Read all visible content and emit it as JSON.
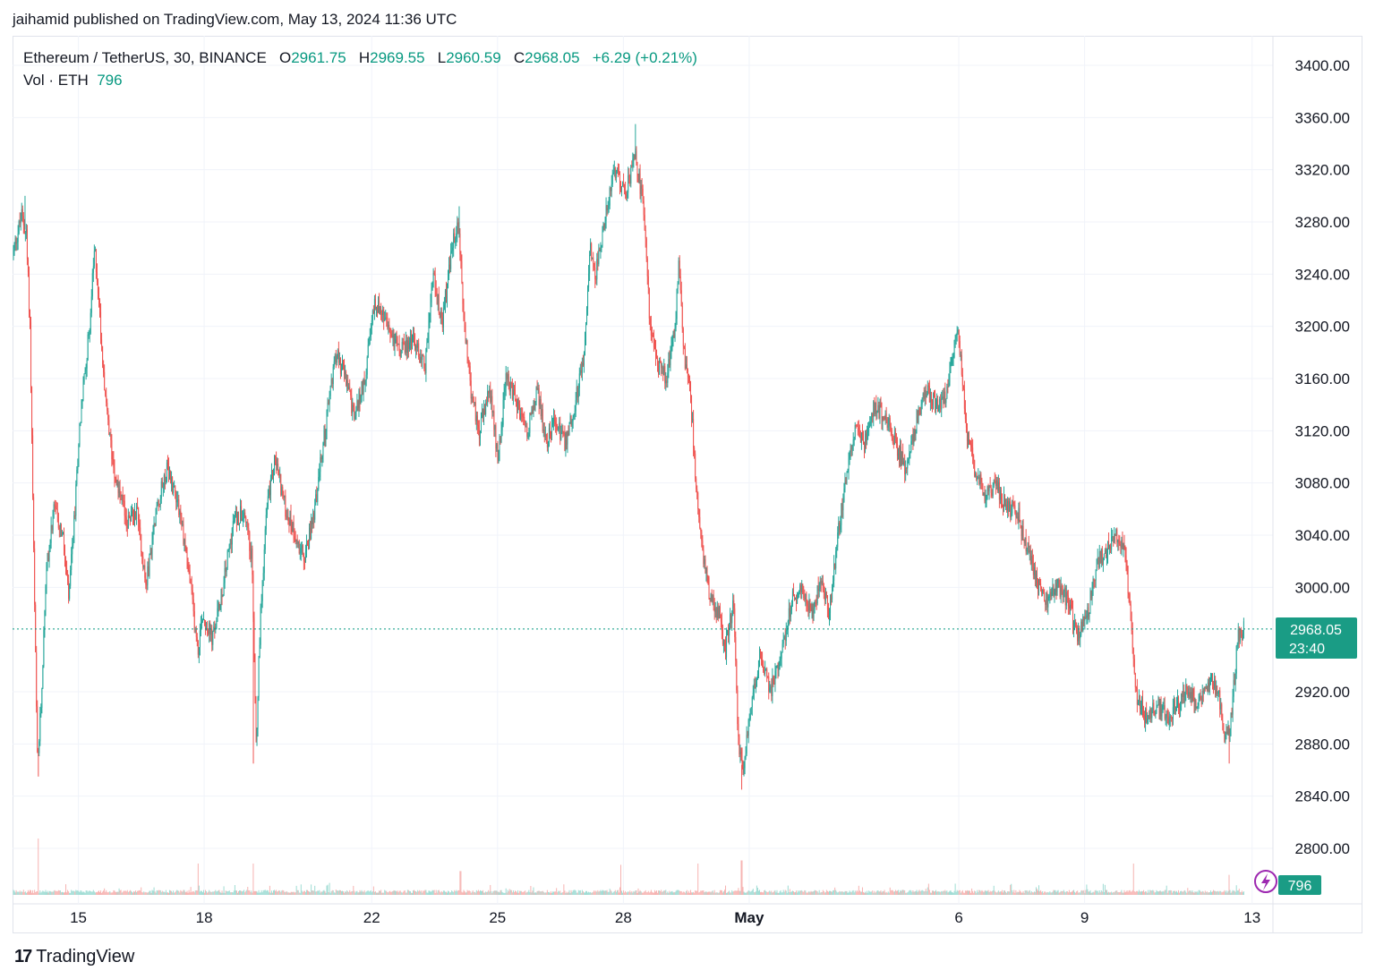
{
  "header": {
    "publisher_text": "jaihamid published on TradingView.com, May 13, 2024 11:36 UTC"
  },
  "legend": {
    "symbol": "Ethereum / TetherUS, 30, BINANCE",
    "o_label": "O",
    "o_value": "2961.75",
    "h_label": "H",
    "h_value": "2969.55",
    "l_label": "L",
    "l_value": "2960.59",
    "c_label": "C",
    "c_value": "2968.05",
    "change": "+6.29 (+0.21%)",
    "vol_label": "Vol · ETH",
    "vol_value": "796"
  },
  "last_price": {
    "price": "2968.05",
    "countdown": "23:40"
  },
  "volume_badge": "796",
  "branding": {
    "logo_text": "TradingView",
    "logo_mark": "17"
  },
  "colors": {
    "up": "#26a69a",
    "down": "#ef5350",
    "up_vol": "#9fdcd4",
    "down_vol": "#f6b3b1",
    "price_line": "#089981",
    "grid": "#f0f3fa",
    "axis_text": "#131722",
    "badge_bg": "#1a9c85"
  },
  "chart_data": {
    "type": "candlestick",
    "title": "Ethereum / TetherUS, 30, BINANCE",
    "ylim": [
      2780,
      3420
    ],
    "y_ticks": [
      "3400.00",
      "3360.00",
      "3320.00",
      "3280.00",
      "3240.00",
      "3200.00",
      "3160.00",
      "3120.00",
      "3080.00",
      "3040.00",
      "3000.00",
      "2920.00",
      "2880.00",
      "2840.00",
      "2800.00"
    ],
    "x_ticks": [
      {
        "label": "15",
        "pos": 1.58
      },
      {
        "label": "18",
        "pos": 4.6
      },
      {
        "label": "22",
        "pos": 8.62
      },
      {
        "label": "25",
        "pos": 11.64
      },
      {
        "label": "28",
        "pos": 14.66
      },
      {
        "label": "May",
        "pos": 17.68,
        "bold": true
      },
      {
        "label": "6",
        "pos": 22.71
      },
      {
        "label": "9",
        "pos": 25.73
      },
      {
        "label": "13",
        "pos": 29.75
      }
    ],
    "x_range": [
      0,
      30.25
    ],
    "close_path": [
      [
        0.0,
        3255
      ],
      [
        0.22,
        3285
      ],
      [
        0.33,
        3270
      ],
      [
        0.42,
        3200
      ],
      [
        0.52,
        3000
      ],
      [
        0.6,
        2860
      ],
      [
        0.7,
        2920
      ],
      [
        0.8,
        3010
      ],
      [
        1.0,
        3060
      ],
      [
        1.2,
        3040
      ],
      [
        1.35,
        2990
      ],
      [
        1.5,
        3060
      ],
      [
        1.6,
        3120
      ],
      [
        1.72,
        3160
      ],
      [
        1.85,
        3200
      ],
      [
        1.97,
        3260
      ],
      [
        2.05,
        3230
      ],
      [
        2.15,
        3180
      ],
      [
        2.3,
        3120
      ],
      [
        2.5,
        3080
      ],
      [
        2.75,
        3050
      ],
      [
        3.0,
        3060
      ],
      [
        3.2,
        3000
      ],
      [
        3.45,
        3060
      ],
      [
        3.7,
        3090
      ],
      [
        3.95,
        3070
      ],
      [
        4.2,
        3020
      ],
      [
        4.45,
        2950
      ],
      [
        4.55,
        2980
      ],
      [
        4.8,
        2960
      ],
      [
        5.05,
        3000
      ],
      [
        5.3,
        3050
      ],
      [
        5.55,
        3060
      ],
      [
        5.75,
        3020
      ],
      [
        5.85,
        2880
      ],
      [
        5.95,
        2980
      ],
      [
        6.1,
        3060
      ],
      [
        6.3,
        3100
      ],
      [
        6.55,
        3060
      ],
      [
        6.8,
        3040
      ],
      [
        7.0,
        3020
      ],
      [
        7.25,
        3060
      ],
      [
        7.5,
        3120
      ],
      [
        7.75,
        3180
      ],
      [
        8.0,
        3160
      ],
      [
        8.2,
        3130
      ],
      [
        8.45,
        3160
      ],
      [
        8.7,
        3220
      ],
      [
        9.0,
        3200
      ],
      [
        9.3,
        3180
      ],
      [
        9.6,
        3190
      ],
      [
        9.9,
        3170
      ],
      [
        10.1,
        3240
      ],
      [
        10.3,
        3200
      ],
      [
        10.55,
        3260
      ],
      [
        10.7,
        3280
      ],
      [
        10.8,
        3220
      ],
      [
        11.0,
        3150
      ],
      [
        11.2,
        3120
      ],
      [
        11.45,
        3150
      ],
      [
        11.65,
        3100
      ],
      [
        11.85,
        3160
      ],
      [
        12.1,
        3140
      ],
      [
        12.35,
        3120
      ],
      [
        12.6,
        3150
      ],
      [
        12.8,
        3110
      ],
      [
        13.0,
        3130
      ],
      [
        13.25,
        3110
      ],
      [
        13.5,
        3140
      ],
      [
        13.72,
        3180
      ],
      [
        13.85,
        3260
      ],
      [
        14.0,
        3240
      ],
      [
        14.2,
        3280
      ],
      [
        14.45,
        3320
      ],
      [
        14.7,
        3300
      ],
      [
        14.95,
        3330
      ],
      [
        15.15,
        3290
      ],
      [
        15.3,
        3200
      ],
      [
        15.5,
        3170
      ],
      [
        15.7,
        3160
      ],
      [
        15.9,
        3200
      ],
      [
        16.0,
        3250
      ],
      [
        16.1,
        3180
      ],
      [
        16.25,
        3160
      ],
      [
        16.4,
        3080
      ],
      [
        16.55,
        3030
      ],
      [
        16.75,
        2990
      ],
      [
        16.95,
        2980
      ],
      [
        17.1,
        2950
      ],
      [
        17.3,
        2990
      ],
      [
        17.42,
        2880
      ],
      [
        17.52,
        2860
      ],
      [
        17.7,
        2900
      ],
      [
        17.95,
        2950
      ],
      [
        18.2,
        2920
      ],
      [
        18.45,
        2950
      ],
      [
        18.7,
        2990
      ],
      [
        18.95,
        3000
      ],
      [
        19.2,
        2980
      ],
      [
        19.4,
        3010
      ],
      [
        19.6,
        2980
      ],
      [
        19.8,
        3040
      ],
      [
        20.0,
        3080
      ],
      [
        20.2,
        3120
      ],
      [
        20.45,
        3110
      ],
      [
        20.7,
        3140
      ],
      [
        20.95,
        3130
      ],
      [
        21.2,
        3110
      ],
      [
        21.45,
        3090
      ],
      [
        21.7,
        3130
      ],
      [
        21.95,
        3150
      ],
      [
        22.2,
        3140
      ],
      [
        22.45,
        3150
      ],
      [
        22.65,
        3200
      ],
      [
        22.75,
        3180
      ],
      [
        22.9,
        3120
      ],
      [
        23.1,
        3090
      ],
      [
        23.35,
        3070
      ],
      [
        23.6,
        3080
      ],
      [
        23.85,
        3060
      ],
      [
        24.1,
        3060
      ],
      [
        24.35,
        3030
      ],
      [
        24.6,
        3000
      ],
      [
        24.85,
        2990
      ],
      [
        25.1,
        3000
      ],
      [
        25.35,
        2990
      ],
      [
        25.55,
        2960
      ],
      [
        25.8,
        2980
      ],
      [
        26.05,
        3020
      ],
      [
        26.3,
        3030
      ],
      [
        26.5,
        3040
      ],
      [
        26.7,
        3030
      ],
      [
        26.82,
        2980
      ],
      [
        26.95,
        2920
      ],
      [
        27.2,
        2900
      ],
      [
        27.45,
        2910
      ],
      [
        27.7,
        2900
      ],
      [
        27.95,
        2910
      ],
      [
        28.2,
        2920
      ],
      [
        28.45,
        2910
      ],
      [
        28.7,
        2930
      ],
      [
        28.95,
        2920
      ],
      [
        29.1,
        2880
      ],
      [
        29.25,
        2900
      ],
      [
        29.4,
        2960
      ],
      [
        29.55,
        2968.05
      ]
    ],
    "wick_extremes": [
      {
        "x": 0.62,
        "low": 2855
      },
      {
        "x": 5.78,
        "low": 2865
      },
      {
        "x": 17.5,
        "low": 2845
      },
      {
        "x": 14.95,
        "high": 3355
      },
      {
        "x": 29.2,
        "low": 2865
      },
      {
        "x": 0.3,
        "high": 3300
      },
      {
        "x": 10.72,
        "high": 3292
      }
    ],
    "current_price": 2968.05,
    "volume_spikes": [
      {
        "x": 0.62,
        "v": 0.9
      },
      {
        "x": 5.78,
        "v": 0.5
      },
      {
        "x": 17.5,
        "v": 0.55
      },
      {
        "x": 4.45,
        "v": 0.5
      },
      {
        "x": 16.45,
        "v": 0.5
      },
      {
        "x": 26.9,
        "v": 0.5
      },
      {
        "x": 14.6,
        "v": 0.48
      },
      {
        "x": 10.75,
        "v": 0.38
      },
      {
        "x": 29.2,
        "v": 0.32
      }
    ]
  }
}
